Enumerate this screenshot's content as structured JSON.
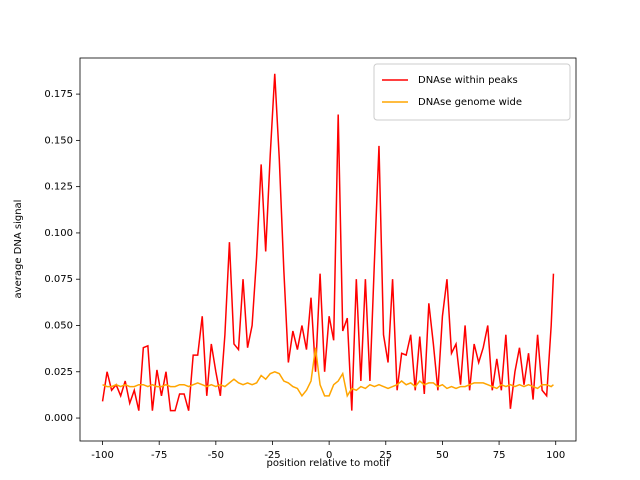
{
  "chart_data": {
    "type": "line",
    "xlabel": "position relative to motif",
    "ylabel": "average DNA signal",
    "x": [
      -100,
      -98,
      -96,
      -94,
      -92,
      -90,
      -88,
      -86,
      -84,
      -82,
      -80,
      -78,
      -76,
      -74,
      -72,
      -70,
      -68,
      -66,
      -64,
      -62,
      -60,
      -58,
      -56,
      -54,
      -52,
      -50,
      -48,
      -46,
      -44,
      -42,
      -40,
      -38,
      -36,
      -34,
      -32,
      -30,
      -28,
      -26,
      -24,
      -22,
      -20,
      -18,
      -16,
      -14,
      -12,
      -10,
      -8,
      -6,
      -4,
      -2,
      0,
      2,
      4,
      6,
      8,
      10,
      12,
      14,
      16,
      18,
      20,
      22,
      24,
      26,
      28,
      30,
      32,
      34,
      36,
      38,
      40,
      42,
      44,
      46,
      48,
      50,
      52,
      54,
      56,
      58,
      60,
      62,
      64,
      66,
      68,
      70,
      72,
      74,
      76,
      78,
      80,
      82,
      84,
      86,
      88,
      90,
      92,
      94,
      96,
      98,
      99
    ],
    "series": [
      {
        "name": "DNAse within peaks",
        "color": "#ff0000",
        "values": [
          0.009,
          0.025,
          0.015,
          0.018,
          0.012,
          0.02,
          0.008,
          0.015,
          0.004,
          0.038,
          0.039,
          0.004,
          0.026,
          0.012,
          0.025,
          0.004,
          0.004,
          0.013,
          0.013,
          0.004,
          0.034,
          0.034,
          0.055,
          0.012,
          0.04,
          0.025,
          0.012,
          0.045,
          0.095,
          0.04,
          0.037,
          0.075,
          0.038,
          0.05,
          0.087,
          0.137,
          0.09,
          0.142,
          0.186,
          0.14,
          0.08,
          0.03,
          0.047,
          0.037,
          0.05,
          0.037,
          0.065,
          0.025,
          0.078,
          0.025,
          0.055,
          0.042,
          0.164,
          0.047,
          0.054,
          0.004,
          0.075,
          0.02,
          0.075,
          0.02,
          0.085,
          0.147,
          0.045,
          0.03,
          0.075,
          0.015,
          0.035,
          0.034,
          0.045,
          0.015,
          0.044,
          0.013,
          0.062,
          0.04,
          0.015,
          0.055,
          0.075,
          0.035,
          0.04,
          0.018,
          0.05,
          0.015,
          0.04,
          0.03,
          0.038,
          0.05,
          0.015,
          0.032,
          0.015,
          0.045,
          0.005,
          0.025,
          0.038,
          0.018,
          0.035,
          0.01,
          0.045,
          0.015,
          0.012,
          0.05,
          0.078
        ]
      },
      {
        "name": "DNAse genome wide",
        "color": "#ffa500",
        "values": [
          0.018,
          0.017,
          0.017,
          0.018,
          0.017,
          0.018,
          0.017,
          0.017,
          0.018,
          0.018,
          0.017,
          0.018,
          0.017,
          0.017,
          0.018,
          0.017,
          0.017,
          0.018,
          0.018,
          0.017,
          0.018,
          0.019,
          0.018,
          0.017,
          0.018,
          0.017,
          0.018,
          0.017,
          0.019,
          0.021,
          0.019,
          0.018,
          0.019,
          0.018,
          0.019,
          0.023,
          0.021,
          0.024,
          0.025,
          0.024,
          0.02,
          0.019,
          0.017,
          0.016,
          0.012,
          0.015,
          0.02,
          0.038,
          0.018,
          0.012,
          0.012,
          0.018,
          0.02,
          0.024,
          0.012,
          0.016,
          0.015,
          0.017,
          0.016,
          0.018,
          0.017,
          0.018,
          0.017,
          0.016,
          0.017,
          0.018,
          0.02,
          0.018,
          0.019,
          0.017,
          0.02,
          0.018,
          0.019,
          0.019,
          0.017,
          0.018,
          0.016,
          0.017,
          0.016,
          0.017,
          0.017,
          0.018,
          0.019,
          0.019,
          0.019,
          0.018,
          0.017,
          0.016,
          0.018,
          0.017,
          0.018,
          0.017,
          0.018,
          0.017,
          0.018,
          0.017,
          0.016,
          0.018,
          0.018,
          0.017,
          0.018
        ]
      }
    ],
    "xlim": [
      -109.95,
      108.95
    ],
    "ylim": [
      -0.0124,
      0.1945
    ],
    "xticks": [
      -100,
      -75,
      -50,
      -25,
      0,
      25,
      50,
      75,
      100
    ],
    "yticks": [
      {
        "value": 0,
        "label": "0.000"
      },
      {
        "value": 0.025,
        "label": "0.025"
      },
      {
        "value": 0.05,
        "label": "0.050"
      },
      {
        "value": 0.075,
        "label": "0.075"
      },
      {
        "value": 0.1,
        "label": "0.100"
      },
      {
        "value": 0.125,
        "label": "0.125"
      },
      {
        "value": 0.15,
        "label": "0.150"
      },
      {
        "value": 0.175,
        "label": "0.175"
      }
    ],
    "legend": "upper right",
    "grid": false
  }
}
